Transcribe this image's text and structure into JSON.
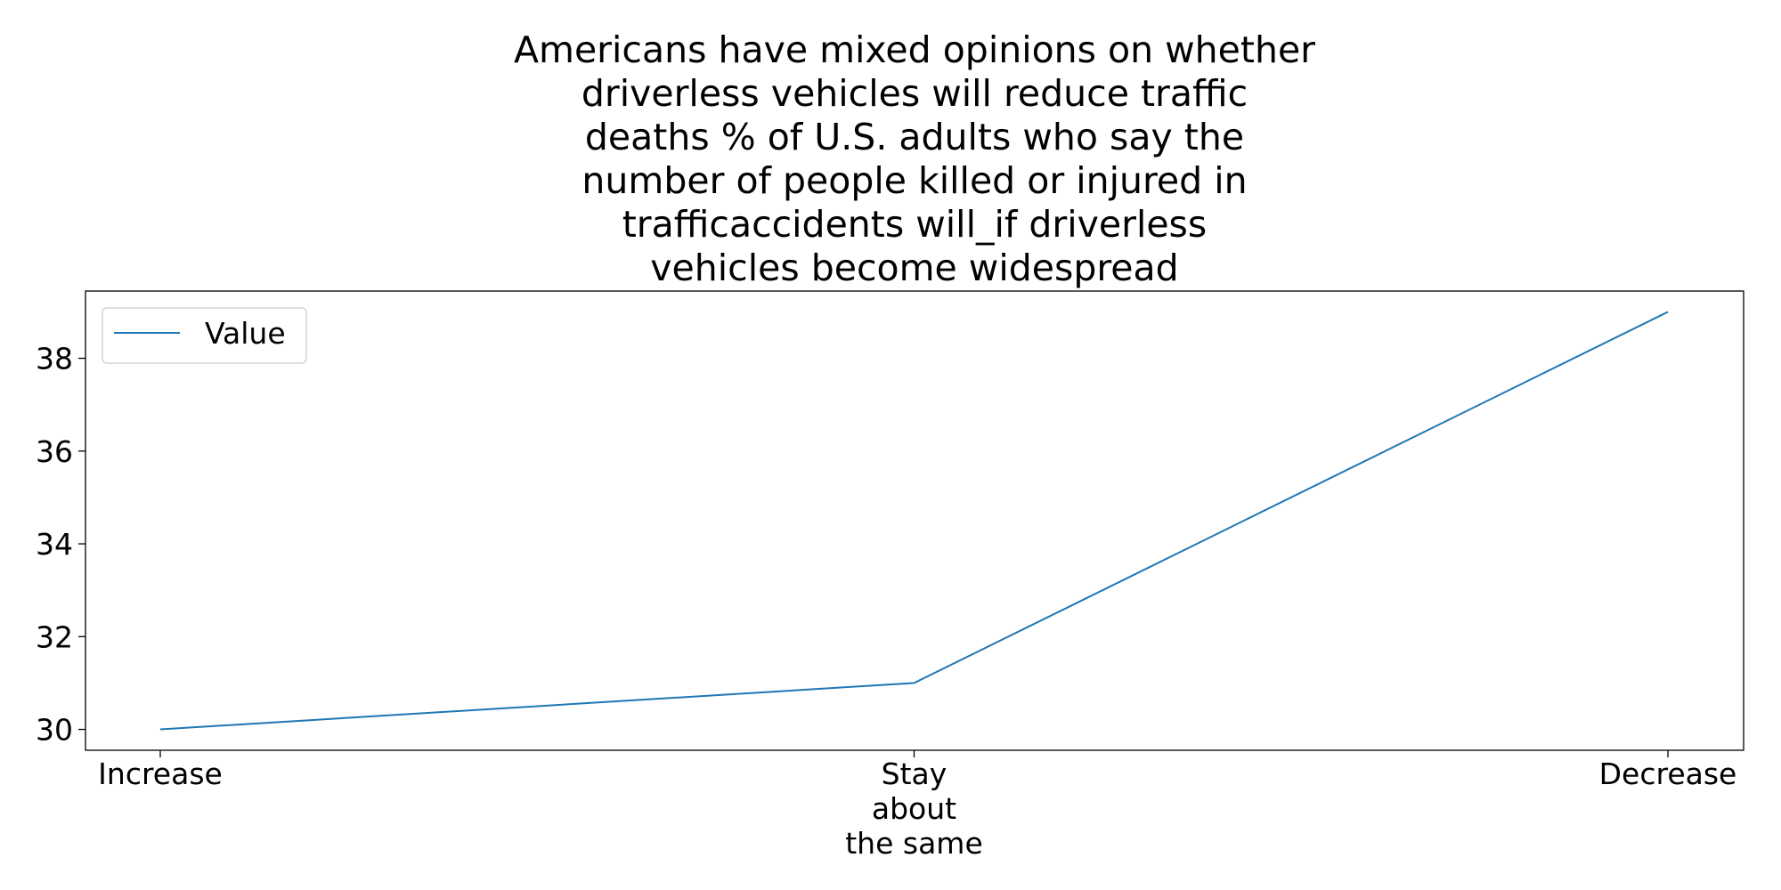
{
  "chart_data": {
    "type": "line",
    "title_lines": [
      "Americans have mixed opinions on whether",
      "driverless vehicles will reduce traffic",
      "deaths % of U.S. adults who say the",
      "number of people killed or injured in",
      "trafficaccidents will_if driverless",
      "vehicles become widespread"
    ],
    "categories": [
      [
        "Increase"
      ],
      [
        "Stay",
        "about",
        "the same"
      ],
      [
        "Decrease"
      ]
    ],
    "series": [
      {
        "name": "Value",
        "values": [
          30,
          31,
          39
        ],
        "color": "#1f77b4"
      }
    ],
    "xlabel": "",
    "ylabel": "",
    "ylim": [
      29.55,
      39.45
    ],
    "yticks": [
      30,
      32,
      34,
      36,
      38
    ],
    "grid": false,
    "legend": "upper-left"
  }
}
